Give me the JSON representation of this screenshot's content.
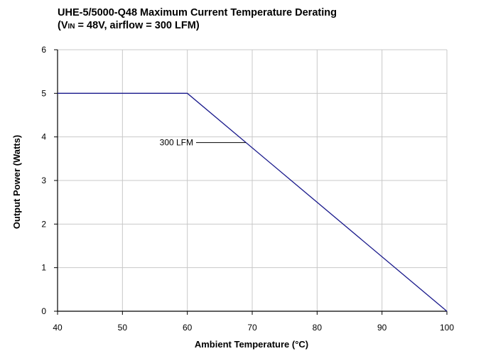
{
  "chart_data": {
    "type": "line",
    "title_line1": "UHE-5/5000-Q48 Maximum Current Temperature Derating",
    "title_line2_prefix": "(V",
    "title_line2_sub": "IN",
    "title_line2_suffix": " = 48V, airflow = 300 LFM)",
    "xlabel": "Ambient Temperature (°C)",
    "ylabel": "Output Power (Watts)",
    "xlim": [
      40,
      100
    ],
    "ylim": [
      0,
      6
    ],
    "xticks": [
      40,
      50,
      60,
      70,
      80,
      90,
      100
    ],
    "yticks": [
      0,
      1,
      2,
      3,
      4,
      5,
      6
    ],
    "grid": true,
    "series": [
      {
        "name": "300 LFM",
        "color": "#1a1a8c",
        "x": [
          40,
          60,
          100
        ],
        "y": [
          5,
          5,
          0
        ]
      }
    ],
    "annotation": {
      "text": "300 LFM",
      "points_to": [
        69,
        3.87
      ]
    }
  }
}
